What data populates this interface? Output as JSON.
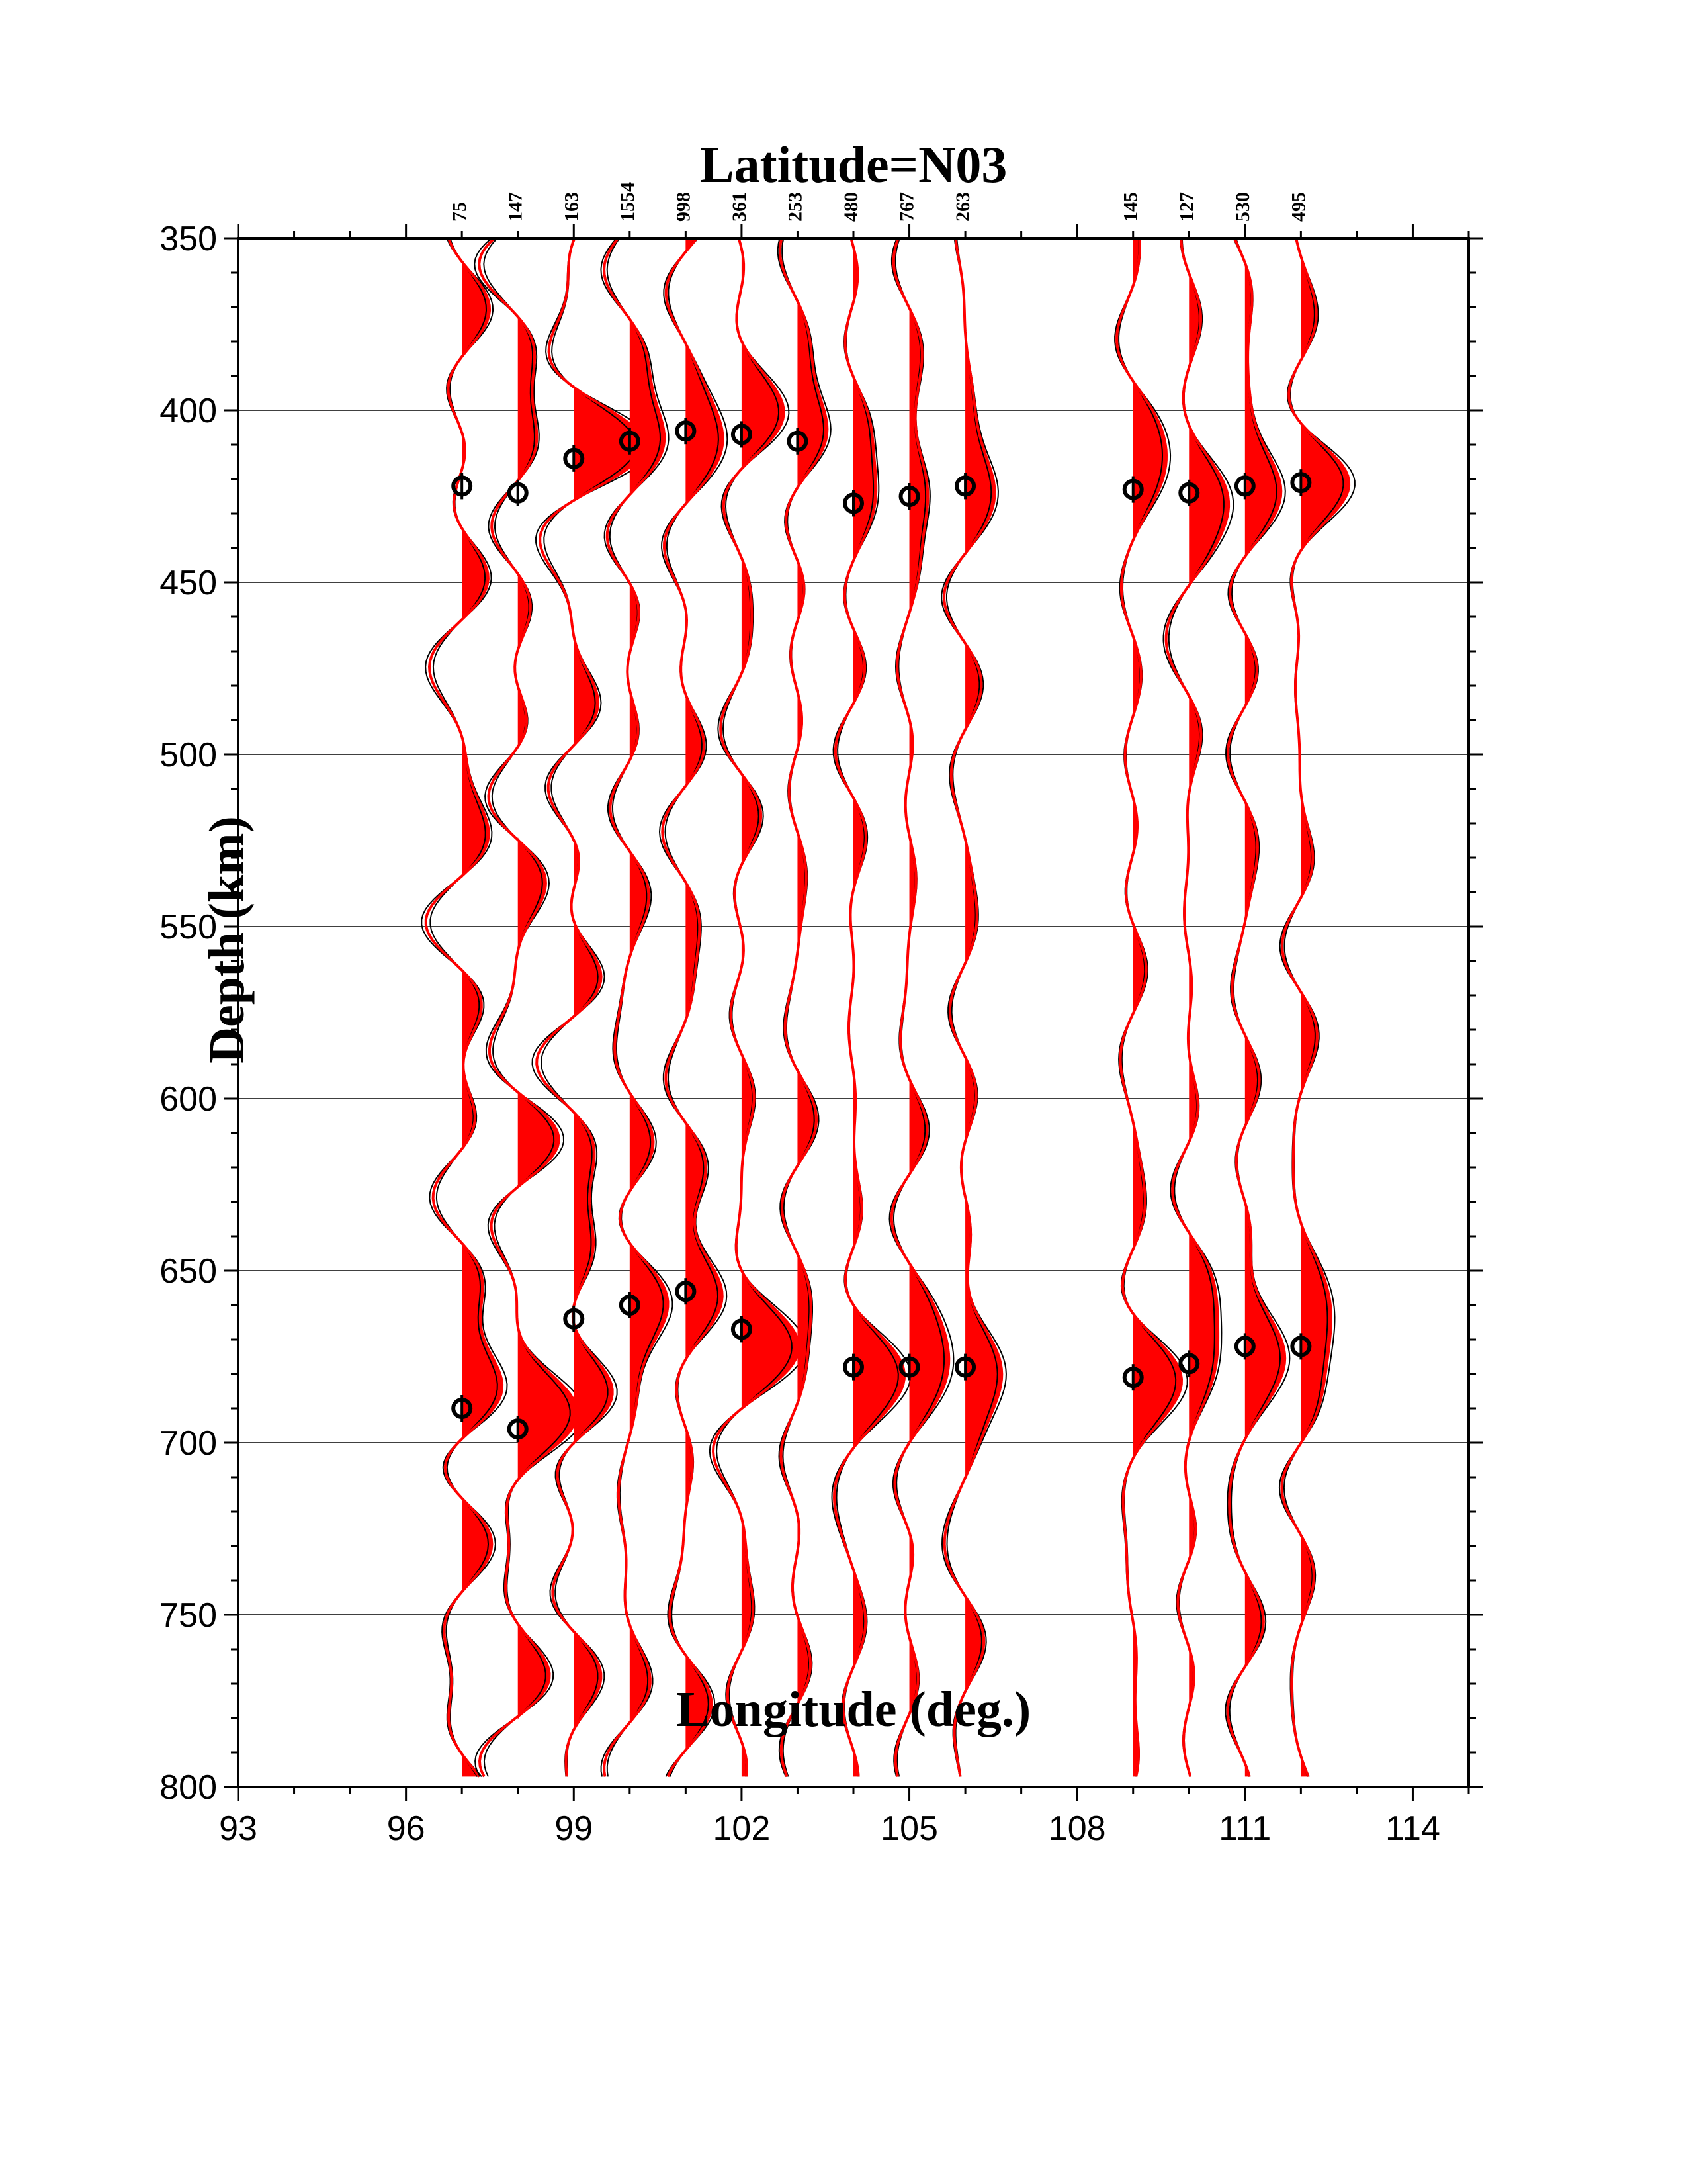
{
  "chart_data": {
    "type": "line",
    "title": "Latitude=N03",
    "xlabel": "Longitude (deg.)",
    "ylabel": "Depth (km)",
    "xlim": [
      93,
      115
    ],
    "ylim": [
      350,
      800
    ],
    "y_inverted": true,
    "xticks": [
      "93",
      "96",
      "99",
      "102",
      "105",
      "108",
      "111",
      "114"
    ],
    "yticks": [
      "350",
      "400",
      "450",
      "500",
      "550",
      "600",
      "650",
      "700",
      "750",
      "800"
    ],
    "grid": "horizontal",
    "colors": {
      "fill": "#ff0000",
      "trace_mean": "#ff0000",
      "trace_bounds": "#000000",
      "marker": "#000000"
    },
    "stations": [
      {
        "lon": 97,
        "count": "75",
        "d410": 422,
        "d660": 690
      },
      {
        "lon": 98,
        "count": "147",
        "d410": 424,
        "d660": 696
      },
      {
        "lon": 99,
        "count": "163",
        "d410": 414,
        "d660": 664
      },
      {
        "lon": 100,
        "count": "1554",
        "d410": 409,
        "d660": 660
      },
      {
        "lon": 101,
        "count": "998",
        "d410": 406,
        "d660": 656
      },
      {
        "lon": 102,
        "count": "361",
        "d410": 407,
        "d660": 667
      },
      {
        "lon": 103,
        "count": "253",
        "d410": 409,
        "d660": null
      },
      {
        "lon": 104,
        "count": "480",
        "d410": 427,
        "d660": 678
      },
      {
        "lon": 105,
        "count": "767",
        "d410": 425,
        "d660": 678
      },
      {
        "lon": 106,
        "count": "263",
        "d410": 422,
        "d660": 678
      },
      {
        "lon": 109,
        "count": "145",
        "d410": 423,
        "d660": 681
      },
      {
        "lon": 110,
        "count": "127",
        "d410": 424,
        "d660": 677
      },
      {
        "lon": 111,
        "count": "530",
        "d410": 422,
        "d660": 672
      },
      {
        "lon": 112,
        "count": "495",
        "d410": 421,
        "d660": 672
      }
    ]
  }
}
